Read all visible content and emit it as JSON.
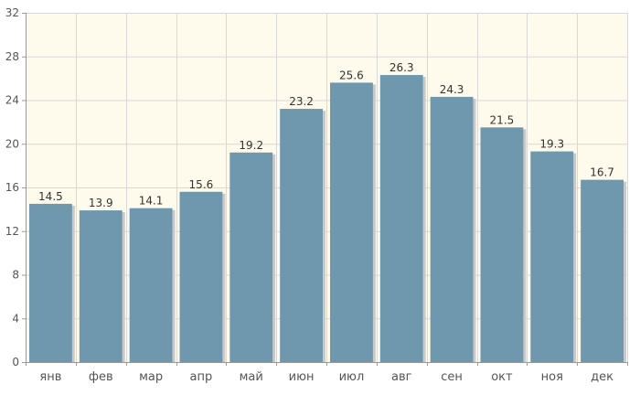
{
  "chart_data": {
    "type": "bar",
    "categories": [
      "янв",
      "фев",
      "мар",
      "апр",
      "май",
      "июн",
      "июл",
      "авг",
      "сен",
      "окт",
      "ноя",
      "дек"
    ],
    "values": [
      14.5,
      13.9,
      14.1,
      15.6,
      19.2,
      23.2,
      25.6,
      26.3,
      24.3,
      21.5,
      19.3,
      16.7
    ],
    "value_labels": [
      "14.5",
      "13.9",
      "14.1",
      "15.6",
      "19.2",
      "23.2",
      "25.6",
      "26.3",
      "24.3",
      "21.5",
      "19.3",
      "16.7"
    ],
    "yticks": [
      0,
      4,
      8,
      12,
      16,
      20,
      24,
      28,
      32
    ],
    "ylim": [
      0,
      32
    ],
    "title": "",
    "xlabel": "",
    "ylabel": "",
    "grid": true,
    "legend": "none",
    "colors": {
      "bar": "#6f97ad",
      "bar_shadow": "#c9c9c9",
      "plot_background": "#fefbec",
      "grid": "#d8d8d8",
      "axis": "#999999"
    }
  }
}
